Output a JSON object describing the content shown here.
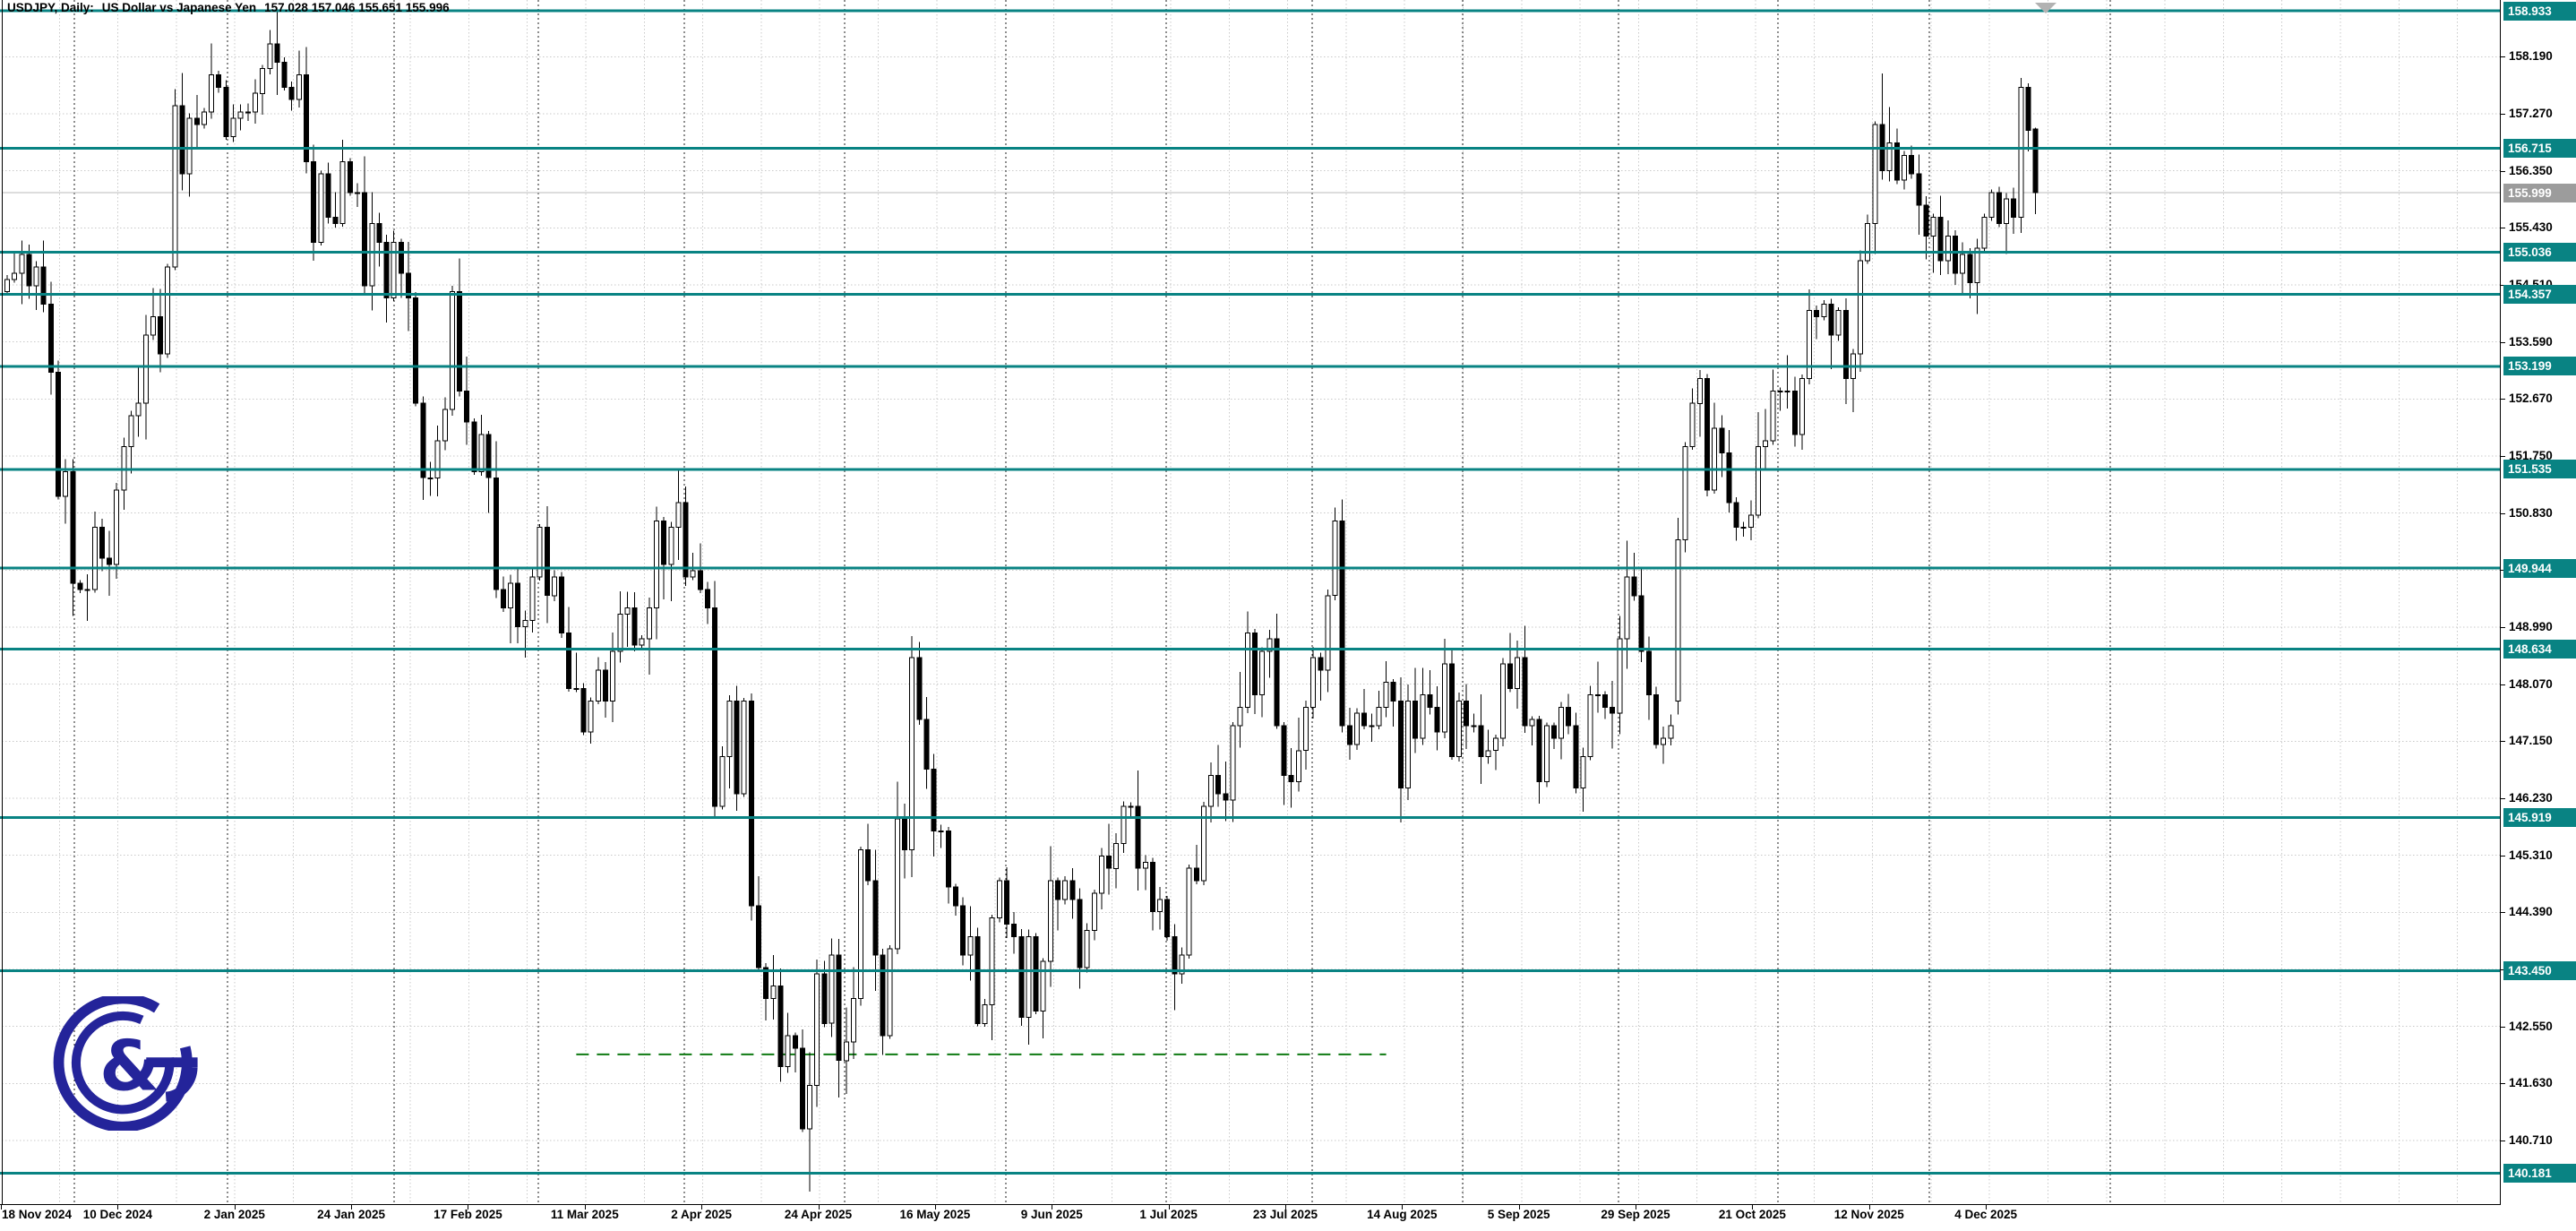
{
  "window": {
    "title_symbol": "USDJPY, Daily:",
    "title_description": "US Dollar vs Japanese Yen",
    "title_ohlc": "157.028 157.046 155.651 155.996"
  },
  "colors": {
    "background": "#ffffff",
    "level_line": "#098383",
    "badge_text": "#ffffff",
    "current_price_badge": "#9c9c9c",
    "current_price_line": "#bbbbbb",
    "grid": "#c9c9c9",
    "month_separator": "#1d1d1d",
    "green_dashed": "#0e7a12",
    "candle_up_fill": "#ffffff",
    "candle_down_fill": "#000000",
    "candle_border": "#000000",
    "axis_text": "#000000",
    "logo_navy": "#24249a",
    "shift_marker": "#b2b2b2"
  },
  "price_axis": {
    "ticks": [
      "158.190",
      "157.270",
      "156.350",
      "155.430",
      "154.510",
      "153.590",
      "152.670",
      "151.750",
      "150.830",
      "149.910",
      "148.990",
      "148.070",
      "147.150",
      "146.230",
      "145.310",
      "144.390",
      "143.470",
      "142.550",
      "141.630",
      "140.710"
    ],
    "level_badges": [
      "158.933",
      "156.715",
      "155.036",
      "154.357",
      "153.199",
      "151.535",
      "149.944",
      "148.634",
      "145.919",
      "143.450",
      "140.181"
    ],
    "current_price": "155.999"
  },
  "time_axis": {
    "labels": [
      "18 Nov 2024",
      "10 Dec 2024",
      "2 Jan 2025",
      "24 Jan 2025",
      "17 Feb 2025",
      "11 Mar 2025",
      "2 Apr 2025",
      "24 Apr 2025",
      "16 May 2025",
      "9 Jun 2025",
      "1 Jul 2025",
      "23 Jul 2025",
      "14 Aug 2025",
      "5 Sep 2025",
      "29 Sep 2025",
      "21 Oct 2025",
      "12 Nov 2025",
      "4 Dec 2025"
    ]
  },
  "chart_data": {
    "type": "candlestick",
    "symbol": "USDJPY",
    "timeframe": "Daily",
    "title": "USDJPY, Daily: US Dollar vs Japanese Yen",
    "last_ohlc": {
      "open": 157.028,
      "high": 157.046,
      "low": 155.651,
      "close": 155.996
    },
    "current_price": 155.999,
    "ylim": [
      139.6,
      159.1
    ],
    "price_tick_step": 0.92,
    "grid": true,
    "legend_position": "none",
    "first_open": 154.4,
    "closes": [
      154.6,
      154.7,
      155.0,
      154.5,
      154.8,
      154.2,
      153.1,
      151.1,
      151.5,
      149.7,
      149.6,
      149.6,
      150.6,
      150.1,
      150.0,
      151.2,
      151.9,
      152.4,
      152.6,
      153.7,
      154.0,
      153.4,
      154.8,
      157.4,
      156.3,
      157.2,
      157.1,
      157.3,
      157.9,
      157.7,
      156.9,
      157.2,
      157.3,
      157.3,
      157.6,
      158.0,
      158.4,
      158.1,
      157.7,
      157.5,
      157.9,
      156.5,
      155.2,
      156.3,
      155.6,
      155.5,
      156.5,
      156.0,
      156.0,
      154.5,
      155.5,
      155.2,
      154.3,
      155.2,
      154.7,
      154.3,
      152.6,
      151.4,
      151.4,
      152.0,
      152.5,
      154.4,
      152.8,
      152.3,
      151.5,
      152.1,
      151.4,
      149.6,
      149.3,
      149.7,
      149.0,
      149.1,
      149.8,
      150.6,
      149.5,
      149.8,
      148.9,
      148.0,
      148.0,
      147.3,
      147.8,
      148.3,
      147.8,
      148.6,
      149.2,
      149.3,
      148.7,
      148.8,
      149.3,
      150.7,
      150.0,
      150.6,
      151.0,
      149.8,
      149.9,
      149.6,
      149.3,
      146.1,
      146.9,
      147.8,
      146.3,
      147.8,
      144.5,
      143.5,
      143.0,
      143.2,
      141.9,
      142.4,
      142.2,
      140.9,
      141.6,
      143.4,
      142.6,
      143.7,
      142.0,
      142.3,
      143.0,
      145.4,
      144.9,
      143.7,
      142.4,
      143.8,
      145.9,
      145.4,
      148.5,
      147.5,
      146.7,
      145.7,
      145.7,
      144.8,
      144.5,
      143.7,
      144.0,
      142.6,
      142.9,
      144.3,
      144.9,
      144.2,
      144.0,
      142.7,
      144.0,
      142.8,
      143.6,
      144.9,
      144.6,
      144.9,
      144.6,
      143.5,
      144.1,
      144.7,
      145.3,
      145.1,
      145.5,
      146.1,
      146.1,
      145.1,
      145.2,
      144.4,
      144.6,
      144.0,
      143.4,
      143.7,
      145.1,
      144.9,
      146.1,
      146.6,
      146.3,
      146.2,
      147.4,
      147.7,
      148.9,
      147.9,
      148.6,
      148.8,
      147.4,
      146.6,
      146.5,
      147.0,
      147.7,
      148.5,
      148.3,
      149.5,
      150.7,
      147.4,
      147.1,
      147.6,
      147.4,
      147.4,
      147.7,
      148.1,
      147.8,
      146.4,
      147.8,
      147.2,
      147.9,
      147.7,
      147.3,
      148.4,
      146.9,
      147.8,
      147.4,
      147.4,
      146.9,
      147.0,
      147.2,
      148.4,
      148.0,
      148.5,
      147.4,
      147.5,
      146.5,
      147.4,
      147.2,
      147.7,
      147.4,
      146.4,
      146.9,
      147.9,
      147.9,
      147.7,
      147.6,
      148.8,
      149.8,
      149.5,
      148.6,
      147.9,
      147.1,
      147.2,
      147.4,
      150.4,
      151.9,
      152.6,
      153.0,
      151.2,
      152.2,
      151.8,
      151.0,
      150.6,
      150.6,
      150.8,
      151.9,
      152.0,
      152.8,
      152.8,
      152.8,
      152.1,
      153.0,
      154.1,
      154.0,
      154.2,
      153.7,
      154.1,
      153.0,
      153.4,
      154.9,
      155.5,
      157.1,
      156.35,
      156.8,
      156.2,
      156.6,
      156.3,
      155.8,
      155.3,
      155.6,
      154.9,
      155.3,
      154.7,
      155.0,
      154.55,
      155.1,
      155.6,
      156.0,
      155.5,
      155.9,
      155.6,
      157.7,
      157.0,
      155.996
    ],
    "wick_overrides": {
      "36": {
        "high": 158.62
      },
      "110": {
        "low": 139.89
      },
      "182": {
        "high": 150.92
      },
      "229": {
        "open": 147.8
      },
      "257": {
        "high": 157.92
      },
      "276": {
        "high": 157.85
      },
      "278": {
        "open": 157.028,
        "high": 157.046,
        "low": 155.651,
        "close": 155.996
      }
    },
    "levels": [
      158.933,
      156.715,
      155.036,
      154.357,
      153.199,
      151.535,
      149.944,
      148.634,
      145.919,
      143.45,
      140.181
    ],
    "green_dashed_line": {
      "price": 142.1,
      "x_start_bar": 78,
      "x_end_bar": 189
    },
    "month_separators_x": [
      83,
      254,
      440,
      601,
      764,
      943,
      1123,
      1302,
      1465,
      1633,
      1807,
      1985,
      2154,
      2356
    ]
  },
  "logo": {
    "ampersand": "&"
  }
}
